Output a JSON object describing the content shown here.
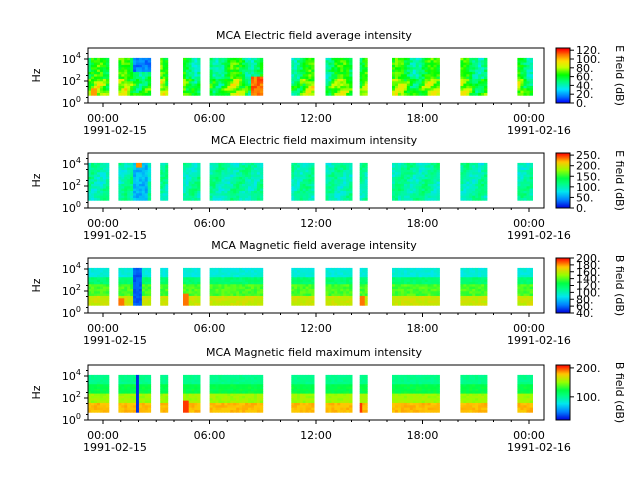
{
  "chart_data": [
    {
      "type": "heatmap",
      "title": "MCA  Electric field average intensity",
      "ylabel": "Hz",
      "yscale": "log",
      "ylim": [
        1,
        100000
      ],
      "y_ticks": [
        {
          "exp": "0"
        },
        {
          "exp": "2"
        },
        {
          "exp": "4"
        }
      ],
      "x_ticks": [
        "00:00",
        "06:00",
        "12:00",
        "18:00",
        "00:00"
      ],
      "x_start_date": "1991-02-15",
      "x_end_date": "1991-02-16",
      "colorbar": {
        "label": "E field (dB)",
        "ticks": [
          "0.",
          "20.",
          "40.",
          "60.",
          "80.",
          "100.",
          "120."
        ],
        "range": [
          0,
          125
        ]
      },
      "palette": "avg"
    },
    {
      "type": "heatmap",
      "title": "MCA  Electric field maximum intensity",
      "ylabel": "Hz",
      "yscale": "log",
      "ylim": [
        1,
        100000
      ],
      "y_ticks": [
        {
          "exp": "0"
        },
        {
          "exp": "2"
        },
        {
          "exp": "4"
        }
      ],
      "x_ticks": [
        "00:00",
        "06:00",
        "12:00",
        "18:00",
        "00:00"
      ],
      "x_start_date": "1991-02-15",
      "x_end_date": "1991-02-16",
      "colorbar": {
        "label": "E field (dB)",
        "ticks": [
          "0.",
          "50.",
          "100.",
          "150.",
          "200.",
          "250."
        ],
        "range": [
          0,
          260
        ]
      },
      "palette": "efmax"
    },
    {
      "type": "heatmap",
      "title": "MCA  Magnetic field average intensity",
      "ylabel": "Hz",
      "yscale": "log",
      "ylim": [
        1,
        100000
      ],
      "y_ticks": [
        {
          "exp": "0"
        },
        {
          "exp": "2"
        },
        {
          "exp": "4"
        }
      ],
      "x_ticks": [
        "00:00",
        "06:00",
        "12:00",
        "18:00",
        "00:00"
      ],
      "x_start_date": "1991-02-15",
      "x_end_date": "1991-02-16",
      "colorbar": {
        "label": "B field (dB)",
        "ticks": [
          "40.",
          "60.",
          "80.",
          "100.",
          "120.",
          "140.",
          "160.",
          "180.",
          "200."
        ],
        "range": [
          40,
          200
        ]
      },
      "palette": "bavg"
    },
    {
      "type": "heatmap",
      "title": "MCA  Magnetic field maximum intensity",
      "ylabel": "Hz",
      "yscale": "log",
      "ylim": [
        1,
        100000
      ],
      "y_ticks": [
        {
          "exp": "0"
        },
        {
          "exp": "2"
        },
        {
          "exp": "4"
        }
      ],
      "x_ticks": [
        "00:00",
        "06:00",
        "12:00",
        "18:00",
        "00:00"
      ],
      "x_start_date": "1991-02-15",
      "x_end_date": "1991-02-16",
      "colorbar": {
        "label": "B field (dB)",
        "ticks": [
          "100.",
          "200."
        ],
        "range": [
          20,
          210
        ]
      },
      "palette": "bmax"
    }
  ],
  "data_segments_hours": [
    [
      0.0,
      1.1
    ],
    [
      1.6,
      3.3
    ],
    [
      3.8,
      4.2
    ],
    [
      5.0,
      5.9
    ],
    [
      6.4,
      9.2
    ],
    [
      10.7,
      11.9
    ],
    [
      12.5,
      13.9
    ],
    [
      14.3,
      14.7
    ],
    [
      16.0,
      18.5
    ],
    [
      19.6,
      21.0
    ],
    [
      22.6,
      23.4
    ]
  ]
}
